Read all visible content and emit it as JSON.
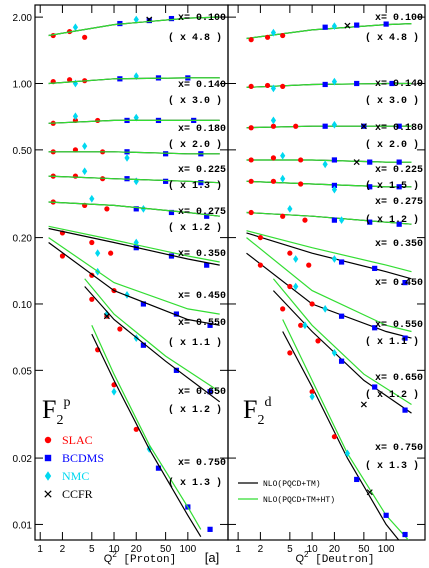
{
  "chart_data": [
    {
      "type": "scatter",
      "log_x": true,
      "log_y": true,
      "ytick_labels": true,
      "xlim": [
        0.85,
        350
      ],
      "ylim": [
        0.0085,
        2.27
      ],
      "xticks": [
        1,
        2,
        5,
        10,
        20,
        50,
        100
      ],
      "yticks": [
        0.01,
        0.02,
        0.05,
        {
          "value": 0.1,
          "label": "0.10"
        },
        {
          "value": 0.2,
          "label": "0.20"
        },
        {
          "value": 0.5,
          "label": "0.50"
        },
        {
          "value": 1,
          "label": "1.00"
        },
        {
          "value": 2,
          "label": "2.00"
        }
      ],
      "x_label": {
        "main": "Q",
        "sup": "2",
        "rest": " [Proton]"
      },
      "tag": "[a]",
      "panel_label": {
        "main": "F",
        "sub": "2",
        "sup": "p"
      },
      "annotations": [
        "x= 0.100",
        "( x 4.8 )",
        "x= 0.140",
        "( x 3.0 )",
        "x= 0.180",
        "( x 2.0 )",
        "x= 0.225",
        "( x 1.3 )",
        "x= 0.275",
        "( x 1.2 )",
        "x= 0.350",
        "x= 0.450",
        "x= 0.550",
        "( x 1.1 )",
        "x= 0.650",
        "( x 1.2 )",
        "x= 0.750",
        "( x 1.3 )"
      ],
      "series": [
        {
          "name": "SLAC",
          "color": "#ff0000",
          "marker": "circle",
          "x": [
            1.5,
            2.5,
            4,
            1.5,
            2.5,
            4,
            1.5,
            3,
            6,
            1.5,
            3,
            7,
            1.5,
            3,
            7,
            1.5,
            4,
            8,
            2,
            5,
            9,
            2,
            5,
            10,
            5,
            8,
            12,
            6,
            10,
            20
          ],
          "values": [
            1.65,
            1.72,
            1.62,
            1.02,
            1.04,
            1.03,
            0.66,
            0.68,
            0.68,
            0.49,
            0.5,
            0.49,
            0.38,
            0.38,
            0.37,
            0.29,
            0.28,
            0.27,
            0.21,
            0.19,
            0.17,
            0.165,
            0.135,
            0.115,
            0.105,
            0.088,
            0.077,
            0.062,
            0.043,
            0.027
          ]
        },
        {
          "name": "BCDMS",
          "color": "#0000ff",
          "marker": "square",
          "x": [
            12,
            30,
            60,
            12,
            40,
            100,
            15,
            40,
            120,
            15,
            50,
            150,
            15,
            50,
            150,
            20,
            60,
            180,
            20,
            60,
            180,
            25,
            70,
            200,
            25,
            70,
            200,
            40,
            100,
            200
          ],
          "values": [
            1.87,
            1.93,
            1.97,
            1.05,
            1.06,
            1.06,
            0.68,
            0.68,
            0.68,
            0.49,
            0.48,
            0.48,
            0.37,
            0.36,
            0.355,
            0.27,
            0.26,
            0.25,
            0.18,
            0.165,
            0.15,
            0.1,
            0.09,
            0.08,
            0.065,
            0.05,
            0.04,
            0.018,
            0.012,
            0.0095
          ]
        },
        {
          "name": "NMC",
          "color": "#00d8f0",
          "marker": "diamond",
          "x": [
            3,
            20,
            3,
            20,
            3,
            20,
            4,
            15,
            4,
            20,
            5,
            25,
            6,
            20,
            6,
            15,
            8,
            20,
            10,
            30
          ],
          "values": [
            1.8,
            1.95,
            1.0,
            1.08,
            0.71,
            0.7,
            0.52,
            0.46,
            0.4,
            0.36,
            0.3,
            0.27,
            0.17,
            0.19,
            0.14,
            0.11,
            0.09,
            0.07,
            0.04,
            0.022
          ]
        },
        {
          "name": "CCFR",
          "color": "#000000",
          "marker": "cross",
          "x": [
            30,
            8
          ],
          "values": [
            1.95,
            0.088
          ]
        }
      ],
      "curves": [
        {
          "color": "#000000",
          "marker": "line",
          "x": [
            1.3,
            10,
            100,
            270,
            null,
            1.3,
            10,
            100,
            270,
            null,
            1.3,
            10,
            100,
            270,
            null,
            1.3,
            10,
            100,
            270,
            null,
            1.3,
            10,
            100,
            270,
            null,
            1.3,
            10,
            100,
            270,
            null,
            1.3,
            10,
            100,
            270,
            null,
            1.3,
            10,
            100,
            270,
            null,
            4,
            10,
            50,
            270,
            null,
            5,
            10,
            30,
            100,
            150
          ],
          "values": [
            1.65,
            1.85,
            1.98,
            2.0,
            null,
            1.0,
            1.05,
            1.06,
            1.06,
            null,
            0.66,
            0.68,
            0.68,
            0.68,
            null,
            0.49,
            0.49,
            0.48,
            0.48,
            null,
            0.38,
            0.37,
            0.36,
            0.355,
            null,
            0.29,
            0.28,
            0.26,
            0.25,
            null,
            0.22,
            0.19,
            0.16,
            0.15,
            null,
            0.19,
            0.115,
            0.085,
            0.08,
            null,
            0.12,
            0.085,
            0.055,
            0.036,
            null,
            0.073,
            0.045,
            0.022,
            0.011,
            0.0088
          ]
        },
        {
          "color": "#33dd33",
          "marker": "line",
          "x": [
            1.3,
            10,
            100,
            270,
            null,
            1.3,
            10,
            100,
            270,
            null,
            1.3,
            10,
            100,
            270,
            null,
            1.3,
            10,
            100,
            270,
            null,
            1.3,
            10,
            100,
            270,
            null,
            1.3,
            10,
            100,
            270,
            null,
            1.3,
            10,
            100,
            270,
            null,
            1.3,
            10,
            100,
            270,
            null,
            4,
            10,
            50,
            270,
            null,
            5,
            10,
            30,
            100,
            150
          ],
          "values": [
            1.65,
            1.85,
            1.98,
            2.0,
            null,
            1.0,
            1.05,
            1.06,
            1.06,
            null,
            0.66,
            0.68,
            0.68,
            0.68,
            null,
            0.49,
            0.49,
            0.48,
            0.48,
            null,
            0.38,
            0.37,
            0.36,
            0.355,
            null,
            0.29,
            0.28,
            0.26,
            0.25,
            null,
            0.225,
            0.195,
            0.165,
            0.155,
            null,
            0.2,
            0.125,
            0.095,
            0.09,
            null,
            0.13,
            0.09,
            0.058,
            0.04,
            null,
            0.08,
            0.048,
            0.023,
            0.012,
            0.0095
          ]
        }
      ]
    },
    {
      "type": "scatter",
      "log_x": true,
      "log_y": true,
      "ytick_labels": false,
      "xlim": [
        0.73,
        335
      ],
      "ylim": [
        0.0085,
        2.27
      ],
      "xticks": [
        1,
        2,
        5,
        10,
        20,
        50,
        100
      ],
      "yticks": [
        0.01,
        0.02,
        0.05,
        0.1,
        0.2,
        0.5,
        1,
        2
      ],
      "x_label": {
        "main": "Q",
        "sup": "2",
        "rest": " [Deutron]"
      },
      "panel_label": {
        "main": "F",
        "sub": "2",
        "sup": "d"
      },
      "annotations": [
        "x= 0.100",
        "( x 4.8 )",
        "x= 0.140",
        "( x 3.0 )",
        "x= 0.180",
        "( x 2.0 )",
        "x= 0.225",
        "( x 1.5 )",
        "x= 0.275",
        "( x 1.2 )",
        "x= 0.350",
        "x= 0.450",
        "x= 0.550",
        "( x 1.1 )",
        "x= 0.650",
        "( x 1.2 )",
        "x= 0.750",
        "( x 1.3 )"
      ],
      "series": [
        {
          "name": "NLO(PQCD+TM)",
          "color": "#000000",
          "marker": "line",
          "x": [
            1.3,
            10,
            100,
            220,
            null,
            1.3,
            10,
            100,
            220,
            null,
            1.3,
            10,
            100,
            220,
            null,
            1.3,
            10,
            100,
            220,
            null,
            1.3,
            10,
            100,
            220,
            null,
            1.3,
            10,
            100,
            220,
            null,
            1.3,
            10,
            100,
            220,
            null,
            1.3,
            10,
            100,
            220,
            null,
            3,
            10,
            50,
            220,
            null,
            4,
            10,
            30,
            100,
            200
          ],
          "values": [
            1.6,
            1.75,
            1.85,
            1.87,
            null,
            0.96,
            0.99,
            1.0,
            1.0,
            null,
            0.63,
            0.64,
            0.64,
            0.64,
            null,
            0.45,
            0.45,
            0.44,
            0.44,
            null,
            0.36,
            0.35,
            0.34,
            0.34,
            null,
            0.26,
            0.25,
            0.235,
            0.23,
            null,
            0.21,
            0.17,
            0.14,
            0.13,
            null,
            0.17,
            0.1,
            0.075,
            0.07,
            null,
            0.115,
            0.075,
            0.045,
            0.032,
            null,
            0.075,
            0.042,
            0.02,
            0.01,
            0.0075
          ]
        },
        {
          "name": "NLO(PQCD+TM+HT)",
          "color": "#33dd33",
          "marker": "line",
          "x": [
            1.3,
            10,
            100,
            220,
            null,
            1.3,
            10,
            100,
            220,
            null,
            1.3,
            10,
            100,
            220,
            null,
            1.3,
            10,
            100,
            220,
            null,
            1.3,
            10,
            100,
            220,
            null,
            1.3,
            10,
            100,
            220,
            null,
            1.3,
            10,
            100,
            220,
            null,
            1.3,
            10,
            100,
            220,
            null,
            3,
            10,
            50,
            220,
            null,
            4,
            10,
            30,
            100,
            200
          ],
          "values": [
            1.6,
            1.75,
            1.85,
            1.87,
            null,
            0.96,
            0.99,
            1.0,
            1.0,
            null,
            0.63,
            0.64,
            0.64,
            0.64,
            null,
            0.45,
            0.45,
            0.44,
            0.44,
            null,
            0.36,
            0.35,
            0.34,
            0.34,
            null,
            0.26,
            0.25,
            0.235,
            0.23,
            null,
            0.215,
            0.18,
            0.15,
            0.14,
            null,
            0.2,
            0.115,
            0.08,
            0.075,
            null,
            0.13,
            0.08,
            0.048,
            0.035,
            null,
            0.085,
            0.045,
            0.021,
            0.011,
            0.0085
          ]
        }
      ],
      "points": [
        {
          "color": "#ff0000",
          "marker": "circle",
          "x": [
            1.5,
            2.5,
            4,
            1.5,
            2.5,
            4,
            1.5,
            3,
            6,
            1.5,
            3,
            7,
            1.5,
            3,
            7,
            1.5,
            4,
            8,
            2,
            5,
            9,
            2,
            5,
            10,
            4,
            7,
            12,
            5,
            10,
            20
          ],
          "values": [
            1.58,
            1.62,
            1.65,
            0.97,
            0.98,
            0.97,
            0.63,
            0.64,
            0.64,
            0.45,
            0.46,
            0.45,
            0.36,
            0.36,
            0.35,
            0.26,
            0.25,
            0.24,
            0.2,
            0.17,
            0.15,
            0.15,
            0.12,
            0.1,
            0.095,
            0.08,
            0.068,
            0.06,
            0.04,
            0.025
          ]
        },
        {
          "color": "#0000ff",
          "marker": "square",
          "x": [
            15,
            40,
            100,
            15,
            40,
            120,
            15,
            50,
            150,
            20,
            60,
            150,
            20,
            60,
            150,
            20,
            60,
            150,
            25,
            70,
            180,
            25,
            70,
            180,
            25,
            70,
            180,
            40,
            100,
            180
          ],
          "values": [
            1.8,
            1.84,
            1.86,
            0.99,
            1.0,
            1.0,
            0.64,
            0.64,
            0.64,
            0.45,
            0.44,
            0.44,
            0.345,
            0.34,
            0.34,
            0.24,
            0.235,
            0.23,
            0.155,
            0.145,
            0.125,
            0.088,
            0.078,
            0.07,
            0.055,
            0.042,
            0.033,
            0.016,
            0.011,
            0.009
          ]
        },
        {
          "color": "#00d8f0",
          "marker": "diamond",
          "x": [
            3,
            20,
            3,
            20,
            3,
            20,
            4,
            15,
            4,
            20,
            5,
            25,
            6,
            20,
            6,
            15,
            8,
            20,
            10,
            30
          ],
          "values": [
            1.7,
            1.82,
            0.95,
            1.02,
            0.68,
            0.65,
            0.47,
            0.43,
            0.37,
            0.33,
            0.27,
            0.24,
            0.16,
            0.16,
            0.12,
            0.095,
            0.08,
            0.06,
            0.038,
            0.021
          ]
        },
        {
          "color": "#000000",
          "marker": "cross",
          "x": [
            30,
            50,
            40,
            50,
            60
          ],
          "values": [
            1.83,
            0.64,
            0.44,
            0.035,
            0.014
          ]
        }
      ]
    }
  ]
}
